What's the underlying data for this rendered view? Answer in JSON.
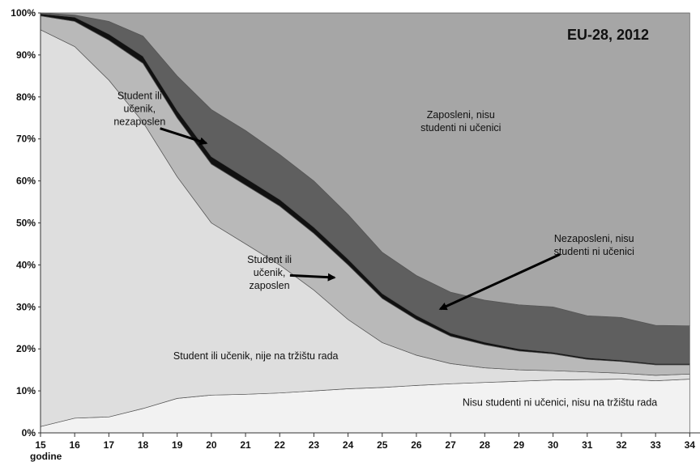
{
  "chart_data": {
    "type": "area",
    "title": "EU-28, 2012",
    "xlabel": "godine",
    "ylabel": "",
    "x": [
      15,
      16,
      17,
      18,
      19,
      20,
      21,
      22,
      23,
      24,
      25,
      26,
      27,
      28,
      29,
      30,
      31,
      32,
      33,
      34
    ],
    "x_tick_labels": [
      "15",
      "16",
      "17",
      "18",
      "19",
      "20",
      "21",
      "22",
      "23",
      "24",
      "25",
      "26",
      "27",
      "28",
      "29",
      "30",
      "31",
      "32",
      "33",
      "34"
    ],
    "ylim": [
      0,
      100
    ],
    "y_tick_labels": [
      "0%",
      "10%",
      "20%",
      "30%",
      "40%",
      "50%",
      "60%",
      "70%",
      "80%",
      "90%",
      "100%"
    ],
    "stacked": true,
    "grid": false,
    "legend": "none",
    "series": [
      {
        "key": "not_student_out",
        "label": "Nisu studenti ni učenici, nisu na tržištu rada",
        "color": "#f2f2f2",
        "values": [
          1.5,
          3.5,
          3.8,
          5.8,
          8.2,
          9.0,
          9.2,
          9.5,
          10.0,
          10.5,
          10.8,
          11.3,
          11.7,
          12.0,
          12.3,
          12.6,
          12.7,
          12.8,
          12.4,
          12.8
        ]
      },
      {
        "key": "student_out",
        "label": "Student ili učenik, nije na tržištu rada",
        "color": "#dedede",
        "values": [
          94.5,
          88.5,
          80.2,
          68.2,
          52.8,
          41.0,
          35.8,
          30.5,
          24.0,
          16.5,
          10.7,
          7.2,
          4.8,
          3.5,
          2.7,
          2.2,
          1.8,
          1.4,
          1.3,
          1.2
        ]
      },
      {
        "key": "student_employed",
        "label": "Student ili učenik, zaposlen",
        "color": "#b9b9b9",
        "values": [
          3.3,
          6.0,
          9.5,
          14.0,
          14.0,
          14.0,
          14.0,
          14.0,
          13.5,
          13.0,
          10.5,
          8.5,
          6.5,
          5.5,
          4.5,
          4.0,
          3.0,
          2.8,
          2.5,
          2.2
        ]
      },
      {
        "key": "student_unemployed",
        "label": "Student ili učenik, nezaposlen",
        "color": "#111111",
        "values": [
          0.5,
          1.0,
          1.5,
          1.7,
          1.8,
          1.8,
          1.7,
          1.6,
          1.5,
          1.4,
          1.2,
          1.0,
          0.8,
          0.6,
          0.5,
          0.4,
          0.4,
          0.3,
          0.3,
          0.3
        ]
      },
      {
        "key": "unemployed",
        "label": "Nezaposleni, nisu studenti ni učenici",
        "color": "#5f5f5f",
        "values": [
          0.2,
          0.5,
          3.0,
          4.8,
          8.2,
          11.2,
          11.3,
          10.7,
          11.0,
          10.6,
          9.8,
          9.5,
          9.7,
          10.0,
          10.5,
          10.8,
          10.0,
          10.2,
          9.1,
          9.0
        ]
      },
      {
        "key": "employed",
        "label": "Zaposleni, nisu studenti ni učenici",
        "color": "#a6a6a6",
        "values": [
          0.0,
          0.5,
          2.0,
          5.5,
          15.0,
          23.0,
          28.0,
          33.7,
          40.0,
          48.0,
          57.0,
          62.5,
          66.5,
          68.4,
          69.5,
          70.0,
          72.1,
          72.5,
          74.4,
          74.5
        ]
      }
    ],
    "annotations": [
      {
        "key": "student_unemployed",
        "lines": [
          "Student ili",
          "učenik,",
          "nezaposlen"
        ],
        "arrow": true
      },
      {
        "key": "employed",
        "lines": [
          "Zaposleni, nisu",
          "studenti ni učenici"
        ],
        "arrow": false
      },
      {
        "key": "student_employed",
        "lines": [
          "Student ili",
          "učenik,",
          "zaposlen"
        ],
        "arrow": true
      },
      {
        "key": "unemployed",
        "lines": [
          "Nezaposleni, nisu",
          "studenti ni učenici"
        ],
        "arrow": true
      },
      {
        "key": "student_out",
        "lines": [
          "Student ili učenik, nije na tržištu rada"
        ],
        "arrow": false
      },
      {
        "key": "not_student_out",
        "lines": [
          "Nisu studenti ni učenici, nisu na tržištu rada"
        ],
        "arrow": false
      }
    ]
  }
}
